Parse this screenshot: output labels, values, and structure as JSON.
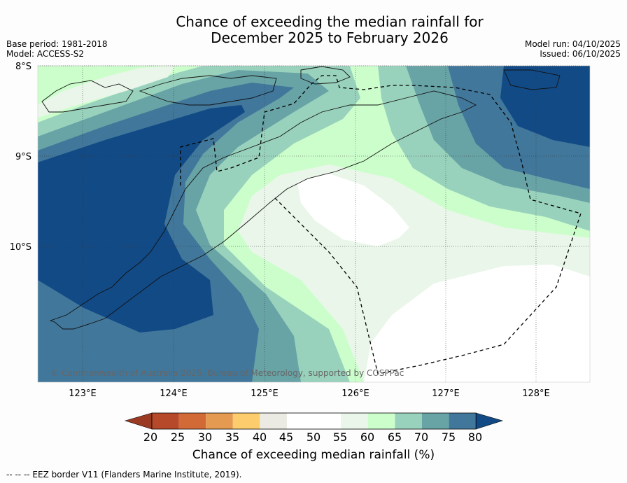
{
  "title_line1": "Chance of exceeding the median rainfall for",
  "title_line2": "December 2025 to February 2026",
  "meta": {
    "base_period": "Base period: 1981-2018",
    "model": "Model: ACCESS-S2",
    "model_run": "Model run: 04/10/2025",
    "issued": "Issued: 06/10/2025"
  },
  "map": {
    "lat_labels": [
      "8°S",
      "9°S",
      "10°S"
    ],
    "lon_labels": [
      "123°E",
      "124°E",
      "125°E",
      "126°E",
      "127°E",
      "128°E"
    ],
    "copyright": "© Commonwealth of Australia 2025, Bureau of Meteorology, supported by COSPPac"
  },
  "colorbar": {
    "ticks": [
      "20",
      "25",
      "30",
      "35",
      "40",
      "45",
      "50",
      "55",
      "60",
      "65",
      "70",
      "75",
      "80"
    ],
    "colors": {
      "lt20": "#9b3a22",
      "20_25": "#b5492a",
      "25_30": "#d26a37",
      "30_35": "#e49a50",
      "35_40": "#fdcd6d",
      "40_45": "#ebebe4",
      "45_55": "#ffffff",
      "55_60": "#eaf6ea",
      "60_65": "#ccfecc",
      "65_70": "#99d2bc",
      "70_75": "#68a3a6",
      "75_80": "#41779a",
      "gt80": "#124a86"
    },
    "label": "Chance of exceeding median rainfall (%)"
  },
  "legend_note": "--  --  -- EEZ border V11 (Flanders Marine Institute, 2019)."
}
